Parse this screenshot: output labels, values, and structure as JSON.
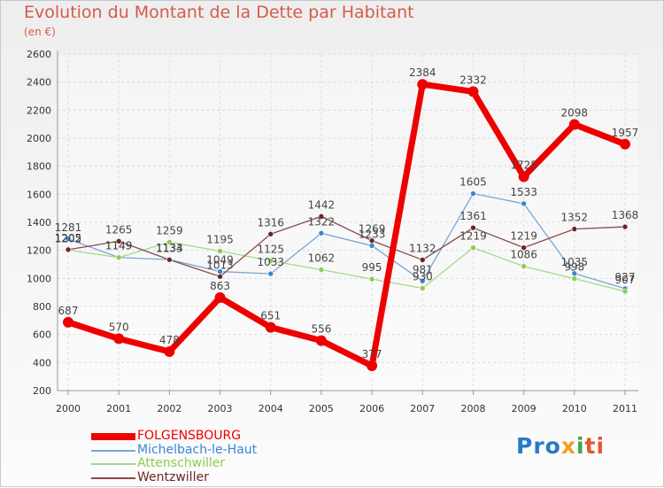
{
  "title": "Evolution du Montant de la Dette par Habitant",
  "subtitle": "(en €)",
  "brand": {
    "part1": "Pro",
    "part2": "x",
    "part3": "i",
    "part4": "ti",
    "colors": {
      "p": "#2a78c8",
      "x": "#f0a020",
      "i": "#3aa84a",
      "ti": "#e05a30"
    }
  },
  "chart_data": {
    "type": "line",
    "title": "Evolution du Montant de la Dette par Habitant",
    "subtitle": "(en €)",
    "xlabel": "",
    "ylabel": "",
    "ylim": [
      200,
      2600
    ],
    "yticks": [
      200,
      400,
      600,
      800,
      1000,
      1200,
      1400,
      1600,
      1800,
      2000,
      2200,
      2400,
      2600
    ],
    "grid": true,
    "legend": "bottom-left",
    "categories": [
      "2000",
      "2001",
      "2002",
      "2003",
      "2004",
      "2005",
      "2006",
      "2007",
      "2008",
      "2009",
      "2010",
      "2011"
    ],
    "series": [
      {
        "name": "FOLGENSBOURG",
        "color": "#ee0000",
        "width": 7,
        "values": [
          687,
          570,
          478,
          863,
          651,
          556,
          377,
          2384,
          2332,
          1725,
          2098,
          1957
        ],
        "labels": [
          "687",
          "570",
          "478",
          "863",
          "651",
          "556",
          "377",
          "2384",
          "2332",
          "1725",
          "2098",
          "1957"
        ]
      },
      {
        "name": "Michelbach-le-Haut",
        "color": "#7aa6d6",
        "dot": "#3a86d6",
        "width": 1.3,
        "values": [
          1281,
          1149,
          1134,
          1049,
          1033,
          1322,
          1233,
          981,
          1605,
          1533,
          1035,
          927
        ],
        "labels": [
          "1281",
          "1149",
          "1134",
          "1049",
          "1033",
          "1322",
          "1233",
          "981",
          "1605",
          "1533",
          "1035",
          "927"
        ]
      },
      {
        "name": "Attenschwiller",
        "color": "#a6d88a",
        "dot": "#8ccc50",
        "width": 1.3,
        "values": [
          1202,
          1149,
          1259,
          1195,
          1125,
          1062,
          995,
          930,
          1219,
          1086,
          998,
          907
        ],
        "labels": [
          "1202",
          "1149",
          "1259",
          "1195",
          "1125",
          "1062",
          "995",
          "930",
          "1219",
          "1086",
          "998",
          "907"
        ]
      },
      {
        "name": "Wentzwiller",
        "color": "#8a4a4a",
        "dot": "#6e2424",
        "width": 1.3,
        "values": [
          1205,
          1265,
          1133,
          1013,
          1316,
          1442,
          1269,
          1132,
          1361,
          1219,
          1352,
          1368
        ],
        "labels": [
          "1205",
          "1265",
          "1133",
          "1013",
          "1316",
          "1442",
          "1269",
          "1132",
          "1361",
          "1219",
          "1352",
          "1368"
        ]
      }
    ]
  }
}
